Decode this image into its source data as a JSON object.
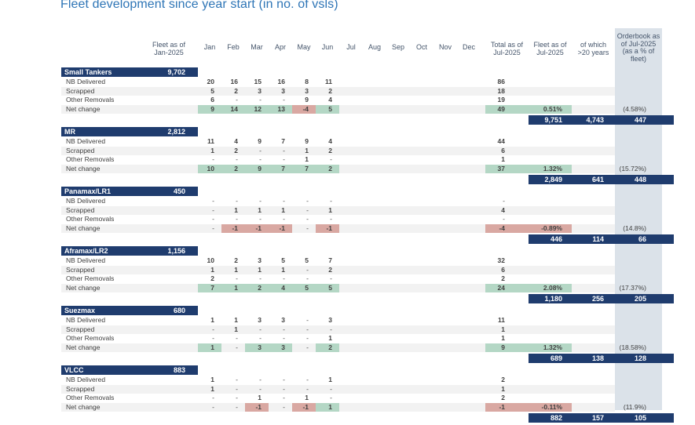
{
  "title": "Fleet development since year start (in no. of vsls)",
  "colors": {
    "navy": "#1f3c6e",
    "green": "#b4d7c5",
    "red": "#d9a8a2",
    "stripe": "#f2f2f2",
    "panel": "#dbe2e9",
    "title_blue": "#2E75B6"
  },
  "chart_data": {
    "type": "table",
    "title": "Fleet development since year start (in no. of vsls)",
    "columns": {
      "fleet_jan": "Fleet as of\nJan-2025",
      "months": [
        "Jan",
        "Feb",
        "Mar",
        "Apr",
        "May",
        "Jun",
        "Jul",
        "Aug",
        "Sep",
        "Oct",
        "Nov",
        "Dec"
      ],
      "total_jul": "Total as of\nJul-2025",
      "fleet_jul": "Fleet as of\nJul-2025",
      "over20": "of which\n>20 years",
      "orderbook": "Orderbook as\nof Jul-2025\n(as a % of fleet)"
    },
    "sections": [
      {
        "name": "Small Tankers",
        "fleet_jan": "9,702",
        "rows": [
          {
            "label": "NB Delivered",
            "months": [
              "20",
              "16",
              "15",
              "16",
              "8",
              "11",
              "",
              "",
              "",
              "",
              "",
              ""
            ],
            "total": "86"
          },
          {
            "label": "Scrapped",
            "months": [
              "5",
              "2",
              "3",
              "3",
              "3",
              "2",
              "",
              "",
              "",
              "",
              "",
              ""
            ],
            "total": "18"
          },
          {
            "label": "Other Removals",
            "months": [
              "6",
              "-",
              "-",
              "-",
              "9",
              "4",
              "",
              "",
              "",
              "",
              "",
              ""
            ],
            "total": "19"
          },
          {
            "label": "Net change",
            "months": [
              "9",
              "14",
              "12",
              "13",
              "-4",
              "5",
              "",
              "",
              "",
              "",
              "",
              ""
            ],
            "hl": [
              "g",
              "g",
              "g",
              "g",
              "r",
              "g",
              "",
              "",
              "",
              "",
              "",
              ""
            ],
            "total": "49",
            "total_hl": "g",
            "pct": "0.51%",
            "pct_hl": "g",
            "orderbook_pct": "(4.58%)"
          }
        ],
        "summary": {
          "fleet_jul": "9,751",
          "over20": "4,743",
          "orderbook": "447"
        }
      },
      {
        "name": "MR",
        "fleet_jan": "2,812",
        "rows": [
          {
            "label": "NB Delivered",
            "months": [
              "11",
              "4",
              "9",
              "7",
              "9",
              "4",
              "",
              "",
              "",
              "",
              "",
              ""
            ],
            "total": "44"
          },
          {
            "label": "Scrapped",
            "months": [
              "1",
              "2",
              "-",
              "-",
              "1",
              "2",
              "",
              "",
              "",
              "",
              "",
              ""
            ],
            "total": "6"
          },
          {
            "label": "Other Removals",
            "months": [
              "-",
              "-",
              "-",
              "-",
              "1",
              "-",
              "",
              "",
              "",
              "",
              "",
              ""
            ],
            "total": "1"
          },
          {
            "label": "Net change",
            "months": [
              "10",
              "2",
              "9",
              "7",
              "7",
              "2",
              "",
              "",
              "",
              "",
              "",
              ""
            ],
            "hl": [
              "g",
              "g",
              "g",
              "g",
              "g",
              "g",
              "",
              "",
              "",
              "",
              "",
              ""
            ],
            "total": "37",
            "total_hl": "g",
            "pct": "1.32%",
            "pct_hl": "g",
            "orderbook_pct": "(15.72%)"
          }
        ],
        "summary": {
          "fleet_jul": "2,849",
          "over20": "641",
          "orderbook": "448"
        }
      },
      {
        "name": "Panamax/LR1",
        "fleet_jan": "450",
        "rows": [
          {
            "label": "NB Delivered",
            "months": [
              "-",
              "-",
              "-",
              "-",
              "-",
              "-",
              "",
              "",
              "",
              "",
              "",
              ""
            ],
            "total": "-"
          },
          {
            "label": "Scrapped",
            "months": [
              "-",
              "1",
              "1",
              "1",
              "-",
              "1",
              "",
              "",
              "",
              "",
              "",
              ""
            ],
            "total": "4"
          },
          {
            "label": "Other Removals",
            "months": [
              "-",
              "-",
              "-",
              "-",
              "-",
              "-",
              "",
              "",
              "",
              "",
              "",
              ""
            ],
            "total": "-"
          },
          {
            "label": "Net change",
            "months": [
              "-",
              "-1",
              "-1",
              "-1",
              "-",
              "-1",
              "",
              "",
              "",
              "",
              "",
              ""
            ],
            "hl": [
              "",
              "r",
              "r",
              "r",
              "",
              "r",
              "",
              "",
              "",
              "",
              "",
              ""
            ],
            "total": "-4",
            "total_hl": "r",
            "pct": "-0.89%",
            "pct_hl": "r",
            "orderbook_pct": "(14.8%)"
          }
        ],
        "summary": {
          "fleet_jul": "446",
          "over20": "114",
          "orderbook": "66"
        }
      },
      {
        "name": "Aframax/LR2",
        "fleet_jan": "1,156",
        "rows": [
          {
            "label": "NB Delivered",
            "months": [
              "10",
              "2",
              "3",
              "5",
              "5",
              "7",
              "",
              "",
              "",
              "",
              "",
              ""
            ],
            "total": "32"
          },
          {
            "label": "Scrapped",
            "months": [
              "1",
              "1",
              "1",
              "1",
              "-",
              "2",
              "",
              "",
              "",
              "",
              "",
              ""
            ],
            "total": "6"
          },
          {
            "label": "Other Removals",
            "months": [
              "2",
              "-",
              "-",
              "-",
              "-",
              "-",
              "",
              "",
              "",
              "",
              "",
              ""
            ],
            "total": "2"
          },
          {
            "label": "Net change",
            "months": [
              "7",
              "1",
              "2",
              "4",
              "5",
              "5",
              "",
              "",
              "",
              "",
              "",
              ""
            ],
            "hl": [
              "g",
              "g",
              "g",
              "g",
              "g",
              "g",
              "",
              "",
              "",
              "",
              "",
              ""
            ],
            "total": "24",
            "total_hl": "g",
            "pct": "2.08%",
            "pct_hl": "g",
            "orderbook_pct": "(17.37%)"
          }
        ],
        "summary": {
          "fleet_jul": "1,180",
          "over20": "256",
          "orderbook": "205"
        }
      },
      {
        "name": "Suezmax",
        "fleet_jan": "680",
        "rows": [
          {
            "label": "NB Delivered",
            "months": [
              "1",
              "1",
              "3",
              "3",
              "-",
              "3",
              "",
              "",
              "",
              "",
              "",
              ""
            ],
            "total": "11"
          },
          {
            "label": "Scrapped",
            "months": [
              "-",
              "1",
              "-",
              "-",
              "-",
              "-",
              "",
              "",
              "",
              "",
              "",
              ""
            ],
            "total": "1"
          },
          {
            "label": "Other Removals",
            "months": [
              "-",
              "-",
              "-",
              "-",
              "-",
              "1",
              "",
              "",
              "",
              "",
              "",
              ""
            ],
            "total": "1"
          },
          {
            "label": "Net change",
            "months": [
              "1",
              "-",
              "3",
              "3",
              "-",
              "2",
              "",
              "",
              "",
              "",
              "",
              ""
            ],
            "hl": [
              "g",
              "",
              "g",
              "g",
              "",
              "g",
              "",
              "",
              "",
              "",
              "",
              ""
            ],
            "total": "9",
            "total_hl": "g",
            "pct": "1.32%",
            "pct_hl": "g",
            "orderbook_pct": "(18.58%)"
          }
        ],
        "summary": {
          "fleet_jul": "689",
          "over20": "138",
          "orderbook": "128"
        }
      },
      {
        "name": "VLCC",
        "fleet_jan": "883",
        "rows": [
          {
            "label": "NB Delivered",
            "months": [
              "1",
              "-",
              "-",
              "-",
              "-",
              "1",
              "",
              "",
              "",
              "",
              "",
              ""
            ],
            "total": "2"
          },
          {
            "label": "Scrapped",
            "months": [
              "1",
              "-",
              "-",
              "-",
              "-",
              "-",
              "",
              "",
              "",
              "",
              "",
              ""
            ],
            "total": "1"
          },
          {
            "label": "Other Removals",
            "months": [
              "-",
              "-",
              "1",
              "-",
              "1",
              "-",
              "",
              "",
              "",
              "",
              "",
              ""
            ],
            "total": "2"
          },
          {
            "label": "Net change",
            "months": [
              "-",
              "-",
              "-1",
              "-",
              "-1",
              "1",
              "",
              "",
              "",
              "",
              "",
              ""
            ],
            "hl": [
              "",
              "",
              "r",
              "",
              "r",
              "g",
              "",
              "",
              "",
              "",
              "",
              ""
            ],
            "total": "-1",
            "total_hl": "r",
            "pct": "-0.11%",
            "pct_hl": "r",
            "orderbook_pct": "(11.9%)"
          }
        ],
        "summary": {
          "fleet_jul": "882",
          "over20": "157",
          "orderbook": "105"
        }
      }
    ]
  }
}
